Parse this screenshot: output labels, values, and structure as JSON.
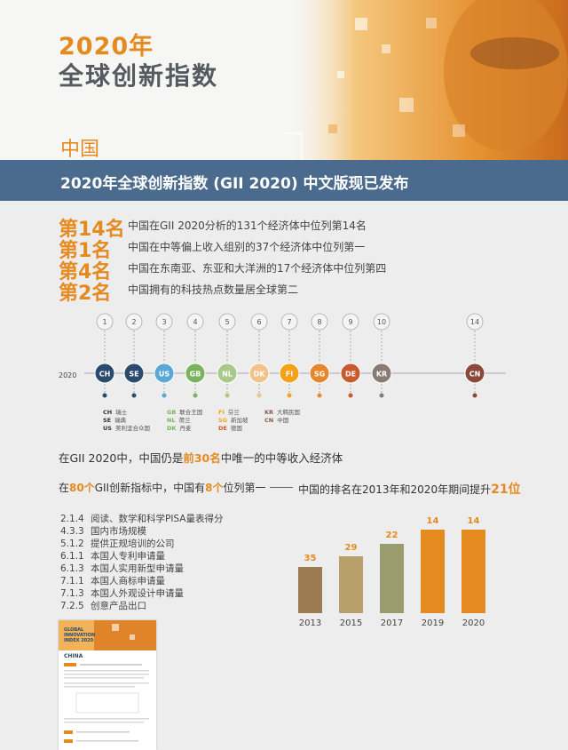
{
  "header": {
    "year_title": "2020年",
    "main_title": "全球创新指数",
    "country": "中国"
  },
  "banner": {
    "text": "2020年全球创新指数 (GII 2020) 中文版现已发布"
  },
  "ranks": [
    {
      "big": "第14名",
      "desc": "中国在GII 2020分析的131个经济体中位列第14名"
    },
    {
      "big": "第1名",
      "desc": "中国在中等偏上收入组别的37个经济体中位列第一"
    },
    {
      "big": "第4名",
      "desc": "中国在东南亚、东亚和大洋洲的17个经济体中位列第四"
    },
    {
      "big": "第2名",
      "desc": "中国拥有的科技热点数量居全球第二"
    }
  ],
  "timeline": {
    "year": "2020",
    "pins": [
      {
        "rank": "1",
        "code": "CH",
        "color": "#2a4a6e"
      },
      {
        "rank": "2",
        "code": "SE",
        "color": "#2a4a6e"
      },
      {
        "rank": "3",
        "code": "US",
        "color": "#5aa7d8"
      },
      {
        "rank": "4",
        "code": "GB",
        "color": "#7ab35e"
      },
      {
        "rank": "5",
        "code": "NL",
        "color": "#a8c98a"
      },
      {
        "rank": "6",
        "code": "DK",
        "color": "#f0c28c"
      },
      {
        "rank": "7",
        "code": "FI",
        "color": "#f3a21a"
      },
      {
        "rank": "8",
        "code": "SG",
        "color": "#e8862e"
      },
      {
        "rank": "9",
        "code": "DE",
        "color": "#c85a2e"
      },
      {
        "rank": "10",
        "code": "KR",
        "color": "#8a7a74"
      },
      {
        "rank": "14",
        "code": "CN",
        "color": "#8a4a3a"
      }
    ],
    "legend": [
      [
        {
          "code": "CH",
          "name": "瑞士",
          "cls": "lg-gray"
        },
        {
          "code": "SE",
          "name": "瑞典",
          "cls": "lg-gray"
        },
        {
          "code": "US",
          "name": "美利坚合众国",
          "cls": "lg-gray"
        }
      ],
      [
        {
          "code": "GB",
          "name": "联合王国",
          "cls": "lg-green"
        },
        {
          "code": "NL",
          "name": "荷兰",
          "cls": "lg-green"
        },
        {
          "code": "DK",
          "name": "丹麦",
          "cls": "lg-green"
        }
      ],
      [
        {
          "code": "FI",
          "name": "芬兰",
          "cls": "lg-yellow"
        },
        {
          "code": "SG",
          "name": "新加坡",
          "cls": "lg-yellow"
        },
        {
          "code": "DE",
          "name": "德国",
          "cls": "lg-red"
        }
      ],
      [
        {
          "code": "KR",
          "name": "大韩民国",
          "cls": "lg-brown"
        },
        {
          "code": "CN",
          "name": "中国",
          "cls": "lg-brown"
        }
      ]
    ]
  },
  "statement": {
    "pre": "在GII 2020中，中国仍是",
    "hl": "前30名",
    "post": "中唯一的中等收入经济体"
  },
  "left_heading": {
    "pre": "在",
    "n1": "80个",
    "mid": "GII创新指标中，中国有",
    "n2": "8个",
    "post": "位列第一"
  },
  "indicators": [
    {
      "code": "2.1.4",
      "name": "阅读、数学和科学PISA量表得分"
    },
    {
      "code": "4.3.3",
      "name": "国内市场规模"
    },
    {
      "code": "5.1.2",
      "name": "提供正规培训的公司"
    },
    {
      "code": "6.1.1",
      "name": "本国人专利申请量"
    },
    {
      "code": "6.1.3",
      "name": "本国人实用新型申请量"
    },
    {
      "code": "7.1.1",
      "name": "本国人商标申请量"
    },
    {
      "code": "7.1.3",
      "name": "本国人外观设计申请量"
    },
    {
      "code": "7.2.5",
      "name": "创意产品出口"
    }
  ],
  "right_heading": {
    "pre": "中国的排名在2013年和2020年期间提升",
    "hl": "21位"
  },
  "chart_data": {
    "type": "bar",
    "categories": [
      "2013",
      "2015",
      "2017",
      "2019",
      "2020"
    ],
    "values": [
      35,
      29,
      22,
      14,
      14
    ],
    "colors": [
      "#9a7b52",
      "#b9a06a",
      "#9a9c6e",
      "#e48a1e",
      "#e48a1e"
    ],
    "title": "",
    "xlabel": "",
    "ylabel": ""
  },
  "thumbnail": {
    "line1": "GLOBAL",
    "line2": "INNOVATION",
    "line3": "INDEX 2020",
    "country": "CHINA"
  }
}
